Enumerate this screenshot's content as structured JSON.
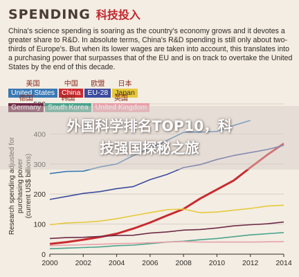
{
  "title": {
    "en": "SPENDING",
    "cn": "科技投入"
  },
  "description": "China's science spending is soaring as the country's economy grows and it devotes a greater share to R&D. In absolute terms, China's R&D spending is still only about two-thirds of Europe's. But when its lower wages are taken into account, this translates into a purchasing power that surpasses that of the EU and is on track to overtake the United States by the end of this decade.",
  "legend": [
    {
      "cn": "美国",
      "en": "United States",
      "color": "#3a78b4",
      "text": "light"
    },
    {
      "cn": "中国",
      "en": "China",
      "color": "#c92a2f",
      "text": "light"
    },
    {
      "cn": "欧盟",
      "en": "EU-28",
      "color": "#3c4b9e",
      "text": "light"
    },
    {
      "cn": "日本",
      "en": "Japan",
      "color": "#e7c93a",
      "text": "dark"
    },
    {
      "cn": "德国",
      "en": "Germany",
      "color": "#6e2a47",
      "text": "light"
    },
    {
      "cn": "韩国",
      "en": "South Korea",
      "color": "#4aa48c",
      "text": "light"
    },
    {
      "cn": "英国",
      "en": "United Kingdom",
      "color": "#e8a0ab",
      "text": "light"
    }
  ],
  "headline": {
    "line1": "外国科学排名TOP10，科",
    "line2": "技强国探秘之旅"
  },
  "chart_data": {
    "type": "line",
    "ylabel": "Research spending adjusted for purchasing power (current US$ billions)",
    "xlim": [
      2000,
      2014
    ],
    "ylim": [
      0,
      500
    ],
    "xticks": [
      2000,
      2002,
      2004,
      2006,
      2008,
      2010,
      2012,
      2014
    ],
    "yticks": [
      0,
      100,
      200,
      300,
      400,
      500
    ],
    "series": [
      {
        "name": "United States",
        "color": "#3a78b4",
        "x": [
          2000,
          2001,
          2002,
          2003,
          2004,
          2005,
          2006,
          2007,
          2008,
          2009,
          2010,
          2011,
          2012
        ],
        "y": [
          268,
          275,
          276,
          290,
          300,
          328,
          352,
          378,
          405,
          406,
          408,
          428,
          445
        ]
      },
      {
        "name": "China",
        "color": "#c92a2f",
        "x": [
          2000,
          2001,
          2002,
          2003,
          2004,
          2005,
          2006,
          2007,
          2008,
          2009,
          2010,
          2011,
          2012,
          2013,
          2014
        ],
        "y": [
          34,
          40,
          48,
          57,
          68,
          85,
          105,
          128,
          150,
          185,
          215,
          245,
          288,
          330,
          368
        ]
      },
      {
        "name": "EU-28",
        "color": "#3c4b9e",
        "x": [
          2000,
          2001,
          2002,
          2003,
          2004,
          2005,
          2006,
          2007,
          2008,
          2009,
          2010,
          2011,
          2012,
          2013,
          2014
        ],
        "y": [
          182,
          192,
          202,
          208,
          218,
          225,
          248,
          265,
          288,
          298,
          315,
          328,
          338,
          348,
          362
        ]
      },
      {
        "name": "Japan",
        "color": "#e7c93a",
        "x": [
          2000,
          2001,
          2002,
          2003,
          2004,
          2005,
          2006,
          2007,
          2008,
          2009,
          2010,
          2011,
          2012,
          2013,
          2014
        ],
        "y": [
          98,
          104,
          106,
          110,
          118,
          128,
          138,
          148,
          150,
          138,
          140,
          146,
          152,
          160,
          163
        ]
      },
      {
        "name": "Germany",
        "color": "#6e2a47",
        "x": [
          2000,
          2001,
          2002,
          2003,
          2004,
          2005,
          2006,
          2007,
          2008,
          2009,
          2010,
          2011,
          2012,
          2013,
          2014
        ],
        "y": [
          52,
          55,
          56,
          59,
          62,
          63,
          70,
          74,
          80,
          82,
          87,
          94,
          98,
          101,
          107
        ]
      },
      {
        "name": "South Korea",
        "color": "#4aa48c",
        "x": [
          2000,
          2001,
          2002,
          2003,
          2004,
          2005,
          2006,
          2007,
          2008,
          2009,
          2010,
          2011,
          2012,
          2013,
          2014
        ],
        "y": [
          18,
          20,
          22,
          24,
          28,
          30,
          35,
          40,
          43,
          48,
          52,
          58,
          64,
          68,
          72
        ]
      },
      {
        "name": "United Kingdom",
        "color": "#e8a0ab",
        "x": [
          2000,
          2001,
          2002,
          2003,
          2004,
          2005,
          2006,
          2007,
          2008,
          2009,
          2010,
          2011,
          2012,
          2013,
          2014
        ],
        "y": [
          28,
          30,
          31,
          33,
          35,
          36,
          38,
          40,
          42,
          40,
          40,
          40,
          40,
          41,
          42
        ]
      }
    ]
  }
}
